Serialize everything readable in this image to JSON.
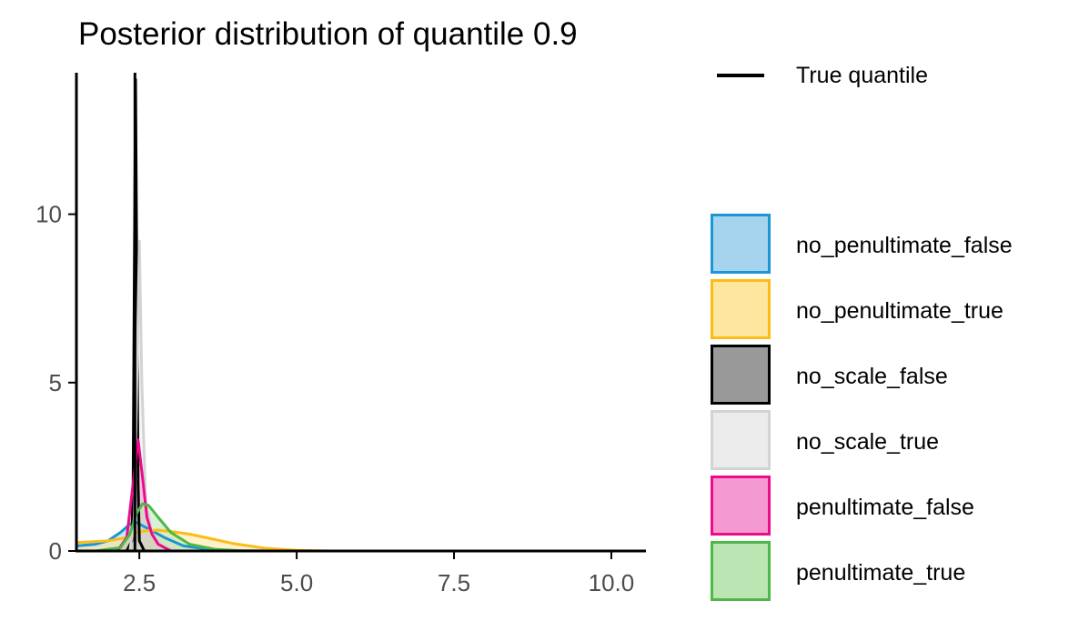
{
  "chart_data": {
    "type": "area",
    "title": "Posterior distribution of quantile 0.9",
    "xlabel": "",
    "ylabel": "",
    "xlim": [
      1.5,
      10.55
    ],
    "ylim": [
      0,
      14.2
    ],
    "x_ticks": [
      2.5,
      5.0,
      7.5,
      10.0
    ],
    "x_tick_labels": [
      "2.5",
      "5.0",
      "7.5",
      "10.0"
    ],
    "y_ticks": [
      0,
      5,
      10
    ],
    "y_tick_labels": [
      "0",
      "5",
      "10"
    ],
    "grid": false,
    "legend_position": "right",
    "reference_line": {
      "name": "True quantile",
      "x": 2.43,
      "color": "#000000"
    },
    "series": [
      {
        "name": "no_penultimate_false",
        "fill": "#a6d4ee",
        "stroke": "#1a96d3",
        "points": [
          [
            1.5,
            0.15
          ],
          [
            1.8,
            0.2
          ],
          [
            2.0,
            0.3
          ],
          [
            2.2,
            0.55
          ],
          [
            2.35,
            0.8
          ],
          [
            2.45,
            0.85
          ],
          [
            2.55,
            0.75
          ],
          [
            2.7,
            0.6
          ],
          [
            2.9,
            0.4
          ],
          [
            3.2,
            0.15
          ],
          [
            3.6,
            0.05
          ],
          [
            4.0,
            0.01
          ],
          [
            5.0,
            0
          ]
        ]
      },
      {
        "name": "no_penultimate_true",
        "fill": "#fde6a0",
        "stroke": "#fbbc16",
        "points": [
          [
            1.5,
            0.25
          ],
          [
            2.0,
            0.3
          ],
          [
            2.3,
            0.4
          ],
          [
            2.45,
            0.55
          ],
          [
            2.6,
            0.6
          ],
          [
            2.8,
            0.62
          ],
          [
            3.0,
            0.58
          ],
          [
            3.3,
            0.5
          ],
          [
            3.6,
            0.38
          ],
          [
            4.0,
            0.22
          ],
          [
            4.5,
            0.08
          ],
          [
            5.0,
            0.02
          ],
          [
            5.5,
            0
          ]
        ]
      },
      {
        "name": "no_scale_false",
        "fill": "#999999",
        "stroke": "#000000",
        "points": [
          [
            2.3,
            0
          ],
          [
            2.38,
            0.3
          ],
          [
            2.4,
            2.0
          ],
          [
            2.42,
            8.0
          ],
          [
            2.44,
            14.0
          ],
          [
            2.46,
            8.0
          ],
          [
            2.48,
            2.0
          ],
          [
            2.5,
            0.3
          ],
          [
            2.58,
            0
          ]
        ]
      },
      {
        "name": "no_scale_true",
        "fill": "#ececec",
        "stroke": "#d3d3d3",
        "points": [
          [
            2.35,
            0
          ],
          [
            2.42,
            1.0
          ],
          [
            2.46,
            5.0
          ],
          [
            2.5,
            9.2
          ],
          [
            2.54,
            5.0
          ],
          [
            2.6,
            1.5
          ],
          [
            2.7,
            0.5
          ],
          [
            2.9,
            0.1
          ],
          [
            3.2,
            0
          ]
        ]
      },
      {
        "name": "penultimate_false",
        "fill": "#f59ad1",
        "stroke": "#ea0c8a",
        "points": [
          [
            2.15,
            0
          ],
          [
            2.3,
            0.4
          ],
          [
            2.4,
            2.0
          ],
          [
            2.48,
            3.3
          ],
          [
            2.55,
            2.2
          ],
          [
            2.62,
            1.0
          ],
          [
            2.7,
            0.5
          ],
          [
            2.8,
            0.2
          ],
          [
            3.0,
            0
          ]
        ]
      },
      {
        "name": "penultimate_true",
        "fill": "#bbe5b3",
        "stroke": "#4db847",
        "points": [
          [
            1.8,
            0
          ],
          [
            2.2,
            0.1
          ],
          [
            2.35,
            0.5
          ],
          [
            2.45,
            1.1
          ],
          [
            2.55,
            1.4
          ],
          [
            2.65,
            1.35
          ],
          [
            2.8,
            1.0
          ],
          [
            3.0,
            0.55
          ],
          [
            3.3,
            0.2
          ],
          [
            3.7,
            0.05
          ],
          [
            4.2,
            0
          ]
        ]
      }
    ]
  }
}
